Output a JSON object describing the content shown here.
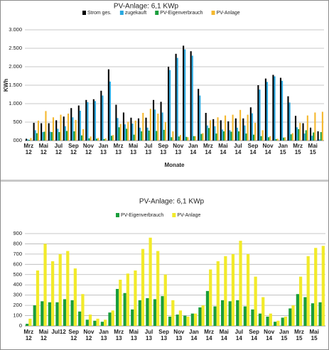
{
  "chart_data": [
    {
      "type": "bar",
      "title": "PV-Anlage: 6,1 KWp",
      "ylabel": "KWh",
      "xlabel": "Monate",
      "categories": [
        "Mrz 12",
        null,
        "Mai 12",
        null,
        "Jul 12",
        null,
        "Sep 12",
        null,
        "Nov 12",
        null,
        "Jan 13",
        null,
        "Mrz 13",
        null,
        "Mai 13",
        null,
        "Jul 13",
        null,
        "Sep 13",
        null,
        "Nov 13",
        null,
        "Jan 14",
        null,
        "Mrz 14",
        null,
        "Mai 14",
        null,
        "Jul 14",
        null,
        "Sep 14",
        null,
        "Nov 14",
        null,
        "Jan 15",
        null,
        "Mrz 15",
        null,
        "Mai 15",
        null
      ],
      "series": [
        {
          "name": "Strom ges.",
          "color": "#000000",
          "values": [
            50,
            480,
            470,
            470,
            550,
            650,
            880,
            950,
            1100,
            1120,
            1350,
            1930,
            970,
            760,
            620,
            600,
            620,
            1100,
            1050,
            2000,
            2350,
            2570,
            2420,
            1400,
            750,
            580,
            550,
            520,
            600,
            600,
            900,
            1500,
            1680,
            1780,
            1700,
            1200,
            670,
            470,
            350,
            250
          ]
        },
        {
          "name": "zugekauft",
          "color": "#29a8e0",
          "values": [
            30,
            280,
            230,
            240,
            320,
            390,
            630,
            810,
            1040,
            1070,
            1220,
            1600,
            610,
            440,
            460,
            350,
            350,
            840,
            760,
            1910,
            2240,
            2470,
            2300,
            1220,
            410,
            390,
            300,
            280,
            350,
            410,
            740,
            1380,
            1590,
            1740,
            1620,
            1030,
            360,
            190,
            130,
            30
          ]
        },
        {
          "name": "PV-Eigenverbrauch",
          "color": "#1a9e3c",
          "values": [
            20,
            200,
            240,
            230,
            230,
            260,
            250,
            140,
            60,
            50,
            40,
            130,
            360,
            320,
            160,
            250,
            270,
            260,
            290,
            90,
            110,
            100,
            120,
            180,
            340,
            190,
            250,
            240,
            250,
            190,
            160,
            120,
            90,
            40,
            80,
            170,
            310,
            280,
            220,
            230
          ]
        },
        {
          "name": "PV-Anlage",
          "color": "#f5b82e",
          "values": [
            70,
            540,
            800,
            630,
            700,
            730,
            560,
            310,
            110,
            70,
            60,
            150,
            450,
            510,
            540,
            750,
            860,
            730,
            500,
            250,
            150,
            90,
            120,
            200,
            550,
            630,
            680,
            700,
            830,
            700,
            480,
            280,
            120,
            50,
            90,
            200,
            480,
            680,
            760,
            780
          ]
        }
      ],
      "ylim": [
        0,
        3000
      ],
      "yticks": [
        {
          "value": 0,
          "label": "000"
        },
        500,
        {
          "value": 1000,
          "label": "1.000"
        },
        {
          "value": 1500,
          "label": "1.500"
        },
        {
          "value": 2000,
          "label": "2.000"
        },
        {
          "value": 2500,
          "label": "2.500"
        },
        {
          "value": 3000,
          "label": "3.000"
        }
      ],
      "grid": true
    },
    {
      "type": "bar",
      "title": "PV-Anlage: 6,1 KWp",
      "categories": [
        "Mrz 12",
        null,
        "Mai 12",
        null,
        "Jul12",
        null,
        "Sep 12",
        null,
        "Nov 12",
        null,
        "Jan 13",
        null,
        "Mrz 13",
        null,
        "Mai 13",
        null,
        "Jul 13",
        null,
        "Sep 13",
        null,
        "Nov 13",
        null,
        "Jan 14",
        null,
        "Mrz 14",
        null,
        "Mai 14",
        null,
        "Jul 14",
        null,
        "Sep 14",
        null,
        "Nov 14",
        null,
        "Jan 15",
        null,
        "Mrz 15",
        null,
        "Mai 15",
        null
      ],
      "series": [
        {
          "name": "PV-Eigenverbrauch",
          "color": "#1a9e3c",
          "values": [
            20,
            200,
            240,
            230,
            230,
            260,
            250,
            140,
            60,
            50,
            40,
            130,
            360,
            320,
            160,
            250,
            270,
            260,
            290,
            90,
            110,
            100,
            120,
            180,
            340,
            190,
            250,
            240,
            250,
            190,
            160,
            120,
            90,
            40,
            80,
            170,
            310,
            280,
            220,
            230
          ]
        },
        {
          "name": "PV-Anlage",
          "color": "#f2ea2a",
          "values": [
            70,
            540,
            800,
            630,
            700,
            730,
            560,
            310,
            110,
            70,
            60,
            150,
            450,
            510,
            540,
            750,
            860,
            730,
            500,
            250,
            150,
            90,
            120,
            200,
            550,
            630,
            680,
            700,
            830,
            700,
            480,
            280,
            120,
            50,
            90,
            200,
            480,
            680,
            760,
            780
          ]
        }
      ],
      "ylim": [
        0,
        900
      ],
      "yticks": [
        0,
        100,
        200,
        300,
        400,
        500,
        600,
        700,
        800,
        900
      ],
      "grid": true
    }
  ]
}
